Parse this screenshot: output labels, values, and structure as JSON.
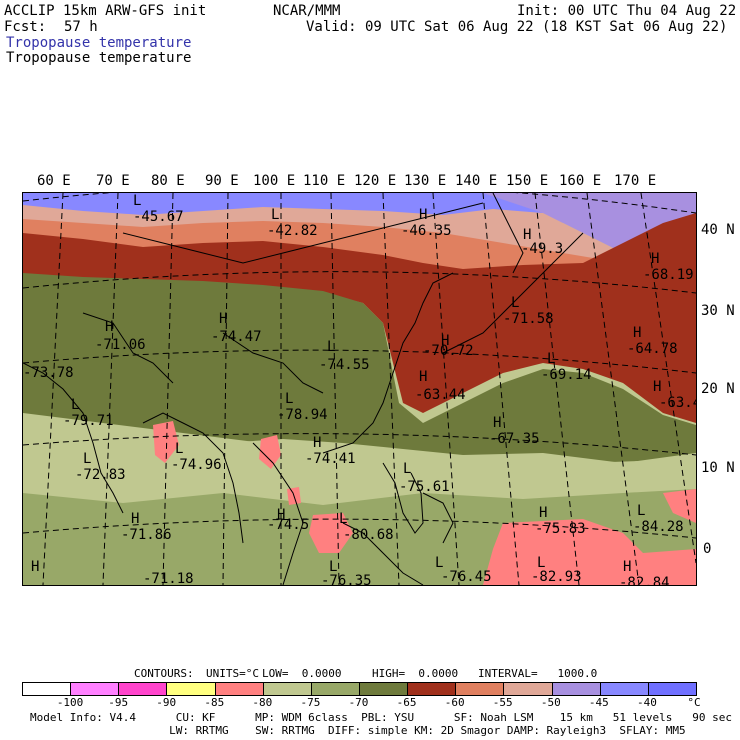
{
  "header": {
    "model": "ACCLIP 15km ARW-GFS init",
    "org": "NCAR/MMM",
    "init": "Init: 00 UTC Thu 04 Aug 22",
    "fcst_label": "Fcst:",
    "fcst_value": "57 h",
    "valid": "Valid: 09 UTC Sat 06 Aug 22 (18 KST Sat 06 Aug 22)",
    "field_title": "Tropopause temperature",
    "field_subtitle": "Tropopause temperature"
  },
  "map": {
    "longitude_labels": [
      "60 E",
      "70 E",
      "80 E",
      "90 E",
      "100 E",
      "110 E",
      "120 E",
      "130 E",
      "140 E",
      "150 E",
      "160 E",
      "170 E"
    ],
    "latitude_labels": [
      "40 N",
      "30 N",
      "20 N",
      "10 N",
      "0"
    ],
    "extrema": [
      {
        "mark": "L",
        "value": "-45.67"
      },
      {
        "mark": "L",
        "value": "-42.82"
      },
      {
        "mark": "H",
        "value": "-46.35"
      },
      {
        "mark": "H",
        "value": "-49.3"
      },
      {
        "mark": "H",
        "value": "-68.19"
      },
      {
        "mark": "H",
        "value": "-71.06"
      },
      {
        "mark": "H",
        "value": "-74.47"
      },
      {
        "mark": "L",
        "value": "-74.55"
      },
      {
        "mark": "L",
        "value": "-71.58"
      },
      {
        "mark": "H",
        "value": "-64.78"
      },
      {
        "mark": "L",
        "value": "-73.78"
      },
      {
        "mark": "H",
        "value": "-70.72"
      },
      {
        "mark": "L",
        "value": "-69.14"
      },
      {
        "mark": "H",
        "value": "-63.44"
      },
      {
        "mark": "H",
        "value": "-63.4"
      },
      {
        "mark": "L",
        "value": "-79.71"
      },
      {
        "mark": "L",
        "value": "-78.94"
      },
      {
        "mark": "H",
        "value": "-67.35"
      },
      {
        "mark": "L",
        "value": "-74.96"
      },
      {
        "mark": "H",
        "value": "-74.41"
      },
      {
        "mark": "L",
        "value": "-72.83"
      },
      {
        "mark": "L",
        "value": "-75.61"
      },
      {
        "mark": "H",
        "value": "-71.86"
      },
      {
        "mark": "H",
        "value": "-74.5"
      },
      {
        "mark": "L",
        "value": "-80.68"
      },
      {
        "mark": "H",
        "value": "-75.83"
      },
      {
        "mark": "L",
        "value": "-84.28"
      },
      {
        "mark": "H",
        "value": "-71.18"
      },
      {
        "mark": "L",
        "value": "-76.35"
      },
      {
        "mark": "L",
        "value": "-76.45"
      },
      {
        "mark": "L",
        "value": "-82.93"
      },
      {
        "mark": "H",
        "value": "-82.84"
      }
    ]
  },
  "contours_line": {
    "contours": "CONTOURS:",
    "units": "UNITS=°C",
    "low": "LOW=  0.0000",
    "high": "HIGH=  0.0000",
    "interval": "INTERVAL=   1000.0"
  },
  "colorbar": {
    "colors": [
      "#ffffff",
      "#ff80ff",
      "#ff44cc",
      "#ffff80",
      "#ff8080",
      "#c0c890",
      "#98a868",
      "#6e7a3c",
      "#a0301c",
      "#e08060",
      "#e0a898",
      "#a890e0",
      "#8888ff",
      "#7070ff"
    ],
    "ticks": [
      "-100",
      "-95",
      "-90",
      "-85",
      "-80",
      "-75",
      "-70",
      "-65",
      "-60",
      "-55",
      "-50",
      "-45",
      "-40"
    ],
    "unit": "°C"
  },
  "footer": {
    "line1": "Model Info: V4.4      CU: KF      MP: WDM 6class  PBL: YSU      SF: Noah LSM    15 km   51 levels   90 sec",
    "line2": "                     LW: RRTMG    SW: RRTMG  DIFF: simple KM: 2D Smagor DAMP: Rayleigh3  SFLAY: MM5"
  }
}
